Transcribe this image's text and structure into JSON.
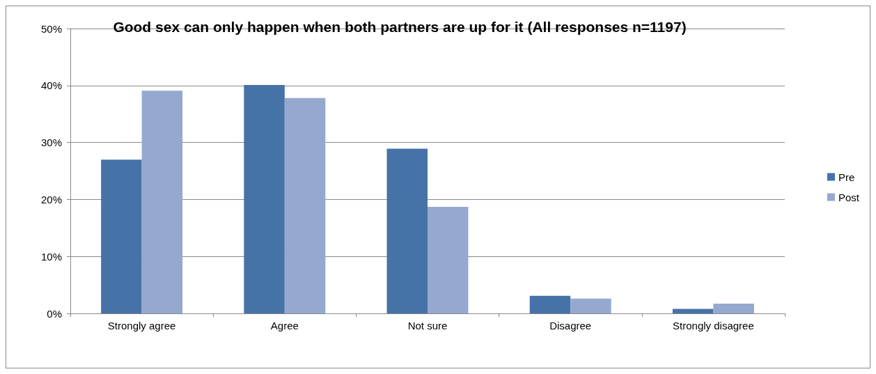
{
  "chart_data": {
    "type": "bar",
    "title": "Good sex can only happen when both partners are up for it (All responses n=1197)",
    "categories": [
      "Strongly agree",
      "Agree",
      "Not sure",
      "Disagree",
      "Strongly disagree"
    ],
    "series": [
      {
        "name": "Pre",
        "color": "#4573a7",
        "values": [
          27.0,
          40.1,
          28.9,
          3.1,
          0.8
        ]
      },
      {
        "name": "Post",
        "color": "#95a9d0",
        "values": [
          39.1,
          37.8,
          18.7,
          2.6,
          1.7
        ]
      }
    ],
    "ylim": [
      0,
      50
    ],
    "yticks": [
      {
        "value": 0,
        "label": "0%"
      },
      {
        "value": 10,
        "label": "10%"
      },
      {
        "value": 20,
        "label": "20%"
      },
      {
        "value": 30,
        "label": "30%"
      },
      {
        "value": 40,
        "label": "40%"
      },
      {
        "value": 50,
        "label": "50%"
      }
    ],
    "grid": "y",
    "legend": "right"
  }
}
